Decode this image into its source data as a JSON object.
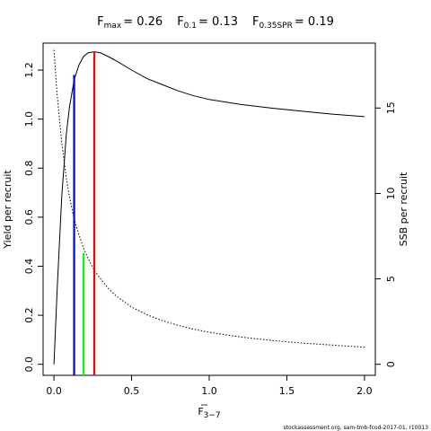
{
  "chart_data": {
    "type": "line",
    "title": {
      "fmax_label": "F",
      "fmax_sub": "max",
      "fmax_value": "= 0.26",
      "f01_label": "F",
      "f01_sub": "0.1",
      "f01_value": "= 0.13",
      "fspr_label": "F",
      "fspr_sub": "0.35SPR",
      "fspr_value": "= 0.19"
    },
    "xlabel": "F",
    "xlabel_sub": "3−7",
    "ylabel_left": "Yield per recruit",
    "ylabel_right": "SSB per recruit",
    "xlim": [
      -0.07,
      2.07
    ],
    "ylim_left": [
      -0.045,
      1.31
    ],
    "ylim_right": [
      -0.645,
      18.8
    ],
    "x_ticks": [
      0,
      0.5,
      1.0,
      1.5,
      2.0
    ],
    "x_tick_labels": [
      "0.0",
      "0.5",
      "1.0",
      "1.5",
      "2.0"
    ],
    "y_left_ticks": [
      0,
      0.2,
      0.4,
      0.6,
      0.8,
      1.0,
      1.2
    ],
    "y_left_tick_labels": [
      "0.0",
      "0.2",
      "0.4",
      "0.6",
      "0.8",
      "1.0",
      "1.2"
    ],
    "y_right_ticks": [
      0,
      5,
      10,
      15
    ],
    "y_right_tick_labels": [
      "0",
      "5",
      "10",
      "15"
    ],
    "series": [
      {
        "axis": "left",
        "style": "solid",
        "color": "#000000",
        "x": [
          0,
          0.02,
          0.05,
          0.08,
          0.1,
          0.13,
          0.16,
          0.19,
          0.22,
          0.26,
          0.3,
          0.35,
          0.4,
          0.5,
          0.6,
          0.7,
          0.8,
          0.9,
          1.0,
          1.2,
          1.4,
          1.6,
          1.8,
          2.0
        ],
        "values": [
          0.0,
          0.3,
          0.68,
          0.94,
          1.05,
          1.16,
          1.22,
          1.255,
          1.27,
          1.275,
          1.27,
          1.255,
          1.238,
          1.2,
          1.165,
          1.14,
          1.115,
          1.095,
          1.08,
          1.06,
          1.045,
          1.032,
          1.02,
          1.01
        ]
      },
      {
        "axis": "right",
        "style": "dotted",
        "color": "#000000",
        "x": [
          0,
          0.02,
          0.05,
          0.08,
          0.1,
          0.13,
          0.16,
          0.19,
          0.22,
          0.26,
          0.3,
          0.35,
          0.4,
          0.5,
          0.6,
          0.7,
          0.8,
          0.9,
          1.0,
          1.2,
          1.4,
          1.6,
          1.8,
          2.0
        ],
        "values": [
          18.4,
          15.8,
          13.0,
          10.9,
          9.8,
          8.5,
          7.6,
          6.8,
          6.2,
          5.5,
          5.0,
          4.45,
          4.0,
          3.35,
          2.9,
          2.55,
          2.28,
          2.05,
          1.88,
          1.6,
          1.4,
          1.24,
          1.12,
          1.0
        ]
      }
    ],
    "reference_lines": [
      {
        "x": 0.13,
        "top": 1.18,
        "axis": "left",
        "color": "#0000ff"
      },
      {
        "x": 0.19,
        "top": 6.5,
        "axis": "right",
        "color": "#00ff00"
      },
      {
        "x": 0.26,
        "top": 1.275,
        "axis": "left",
        "color": "#ff0000"
      }
    ],
    "grid": false,
    "legend": "none"
  },
  "footer": "stockassessment.org, sam-tmb-fcod-2017-01, r10013"
}
